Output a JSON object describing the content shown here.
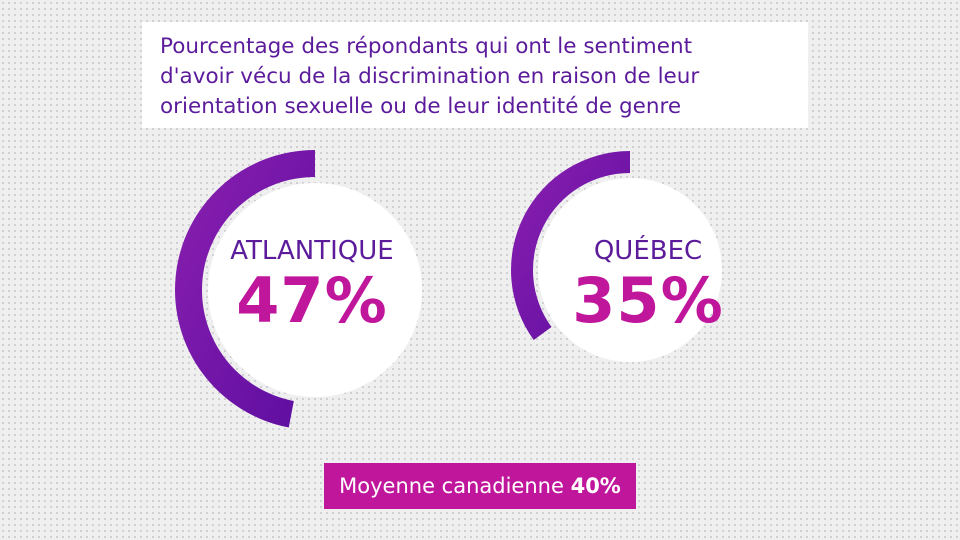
{
  "title_lines": [
    "Pourcentage des répondants qui ont le sentiment",
    "d'avoir vécu de la discrimination en raison de leur",
    "orientation sexuelle ou de leur identité de genre"
  ],
  "chart_data": {
    "type": "pie",
    "subtype": "donut",
    "title": "Pourcentage des répondants qui ont le sentiment d'avoir vécu de la discrimination en raison de leur orientation sexuelle ou de leur identité de genre",
    "unit": "%",
    "series": [
      {
        "name": "ATLANTIQUE",
        "value": 47,
        "display": "47%"
      },
      {
        "name": "QUÉBEC",
        "value": 35,
        "display": "35%"
      }
    ],
    "colors": {
      "arc_start": "#8b1fb0",
      "arc_end": "#5c0ea0",
      "label": "#5b1b9b",
      "value": "#c0169c",
      "center": "#ffffff"
    },
    "reference": {
      "label": "Moyenne canadienne",
      "value": 40,
      "display": "40%"
    }
  }
}
